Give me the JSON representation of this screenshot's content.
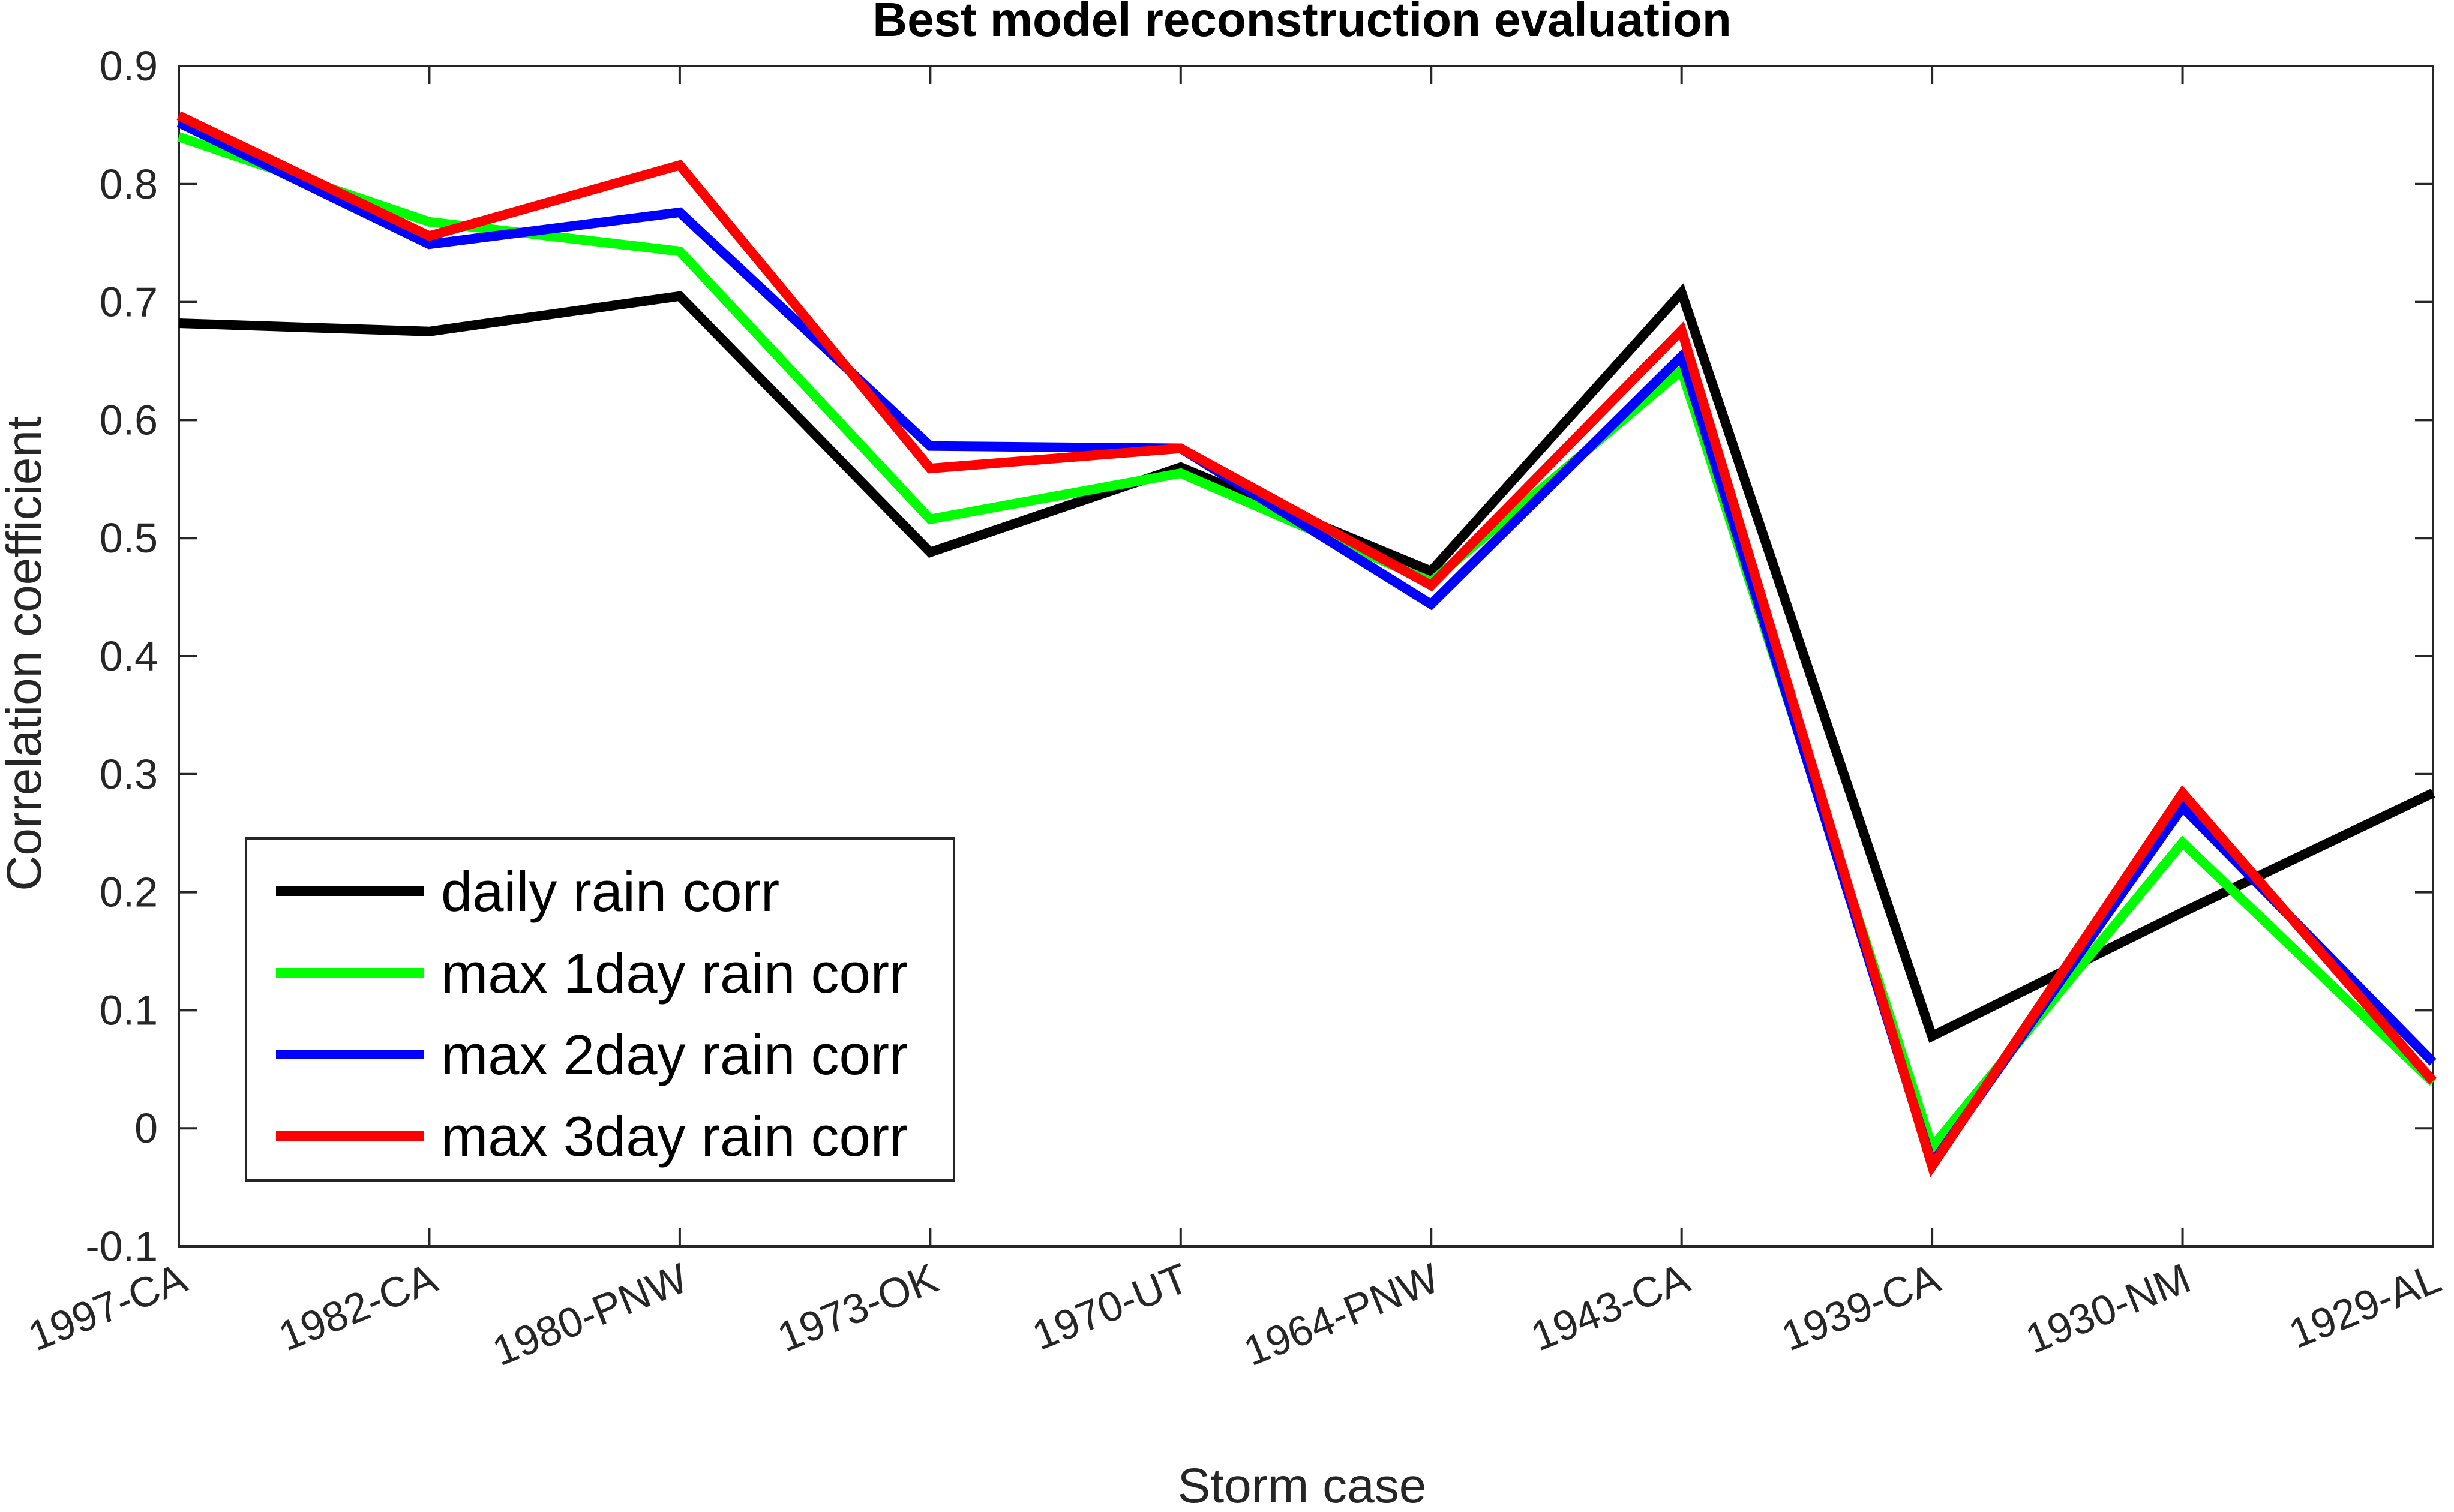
{
  "chart_data": {
    "type": "line",
    "title": "Best model reconstruction evaluation",
    "xlabel": "Storm case",
    "ylabel": "Correlation coefficient",
    "categories": [
      "1997-CA",
      "1982-CA",
      "1980-PNW",
      "1973-OK",
      "1970-UT",
      "1964-PNW",
      "1943-CA",
      "1939-CA",
      "1930-NM",
      "1929-AL"
    ],
    "ylim": [
      -0.1,
      0.9
    ],
    "yticks": [
      "-0.1",
      "0",
      "0.1",
      "0.2",
      "0.3",
      "0.4",
      "0.5",
      "0.6",
      "0.7",
      "0.8",
      "0.9"
    ],
    "grid": false,
    "legend_position": "bottom-left",
    "series": [
      {
        "name": "daily rain corr",
        "color": "#000000",
        "values": [
          0.682,
          0.675,
          0.705,
          0.488,
          0.56,
          0.472,
          0.708,
          0.078,
          0.183,
          0.284
        ]
      },
      {
        "name": "max 1day rain corr",
        "color": "#00ff00",
        "values": [
          0.84,
          0.768,
          0.743,
          0.516,
          0.555,
          0.463,
          0.642,
          -0.016,
          0.242,
          0.039
        ]
      },
      {
        "name": "max 2day rain corr",
        "color": "#0000ff",
        "values": [
          0.852,
          0.749,
          0.776,
          0.578,
          0.576,
          0.444,
          0.654,
          -0.03,
          0.272,
          0.056
        ]
      },
      {
        "name": "max 3day rain corr",
        "color": "#ff0000",
        "values": [
          0.858,
          0.756,
          0.816,
          0.559,
          0.576,
          0.46,
          0.676,
          -0.032,
          0.284,
          0.04
        ]
      }
    ]
  }
}
